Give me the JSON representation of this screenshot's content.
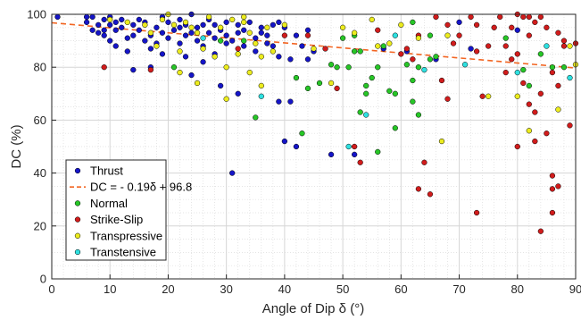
{
  "chart_data": {
    "type": "scatter",
    "xlabel": "Angle of Dip δ (°)",
    "ylabel": "DC (%)",
    "xlim": [
      0,
      90
    ],
    "ylim": [
      0,
      100
    ],
    "xticks": [
      0,
      10,
      20,
      30,
      40,
      50,
      60,
      70,
      80,
      90
    ],
    "yticks": [
      0,
      20,
      40,
      60,
      80,
      100
    ],
    "grid": true,
    "minor_grid": true,
    "legend_position": "bottom-left",
    "fit_line": {
      "label": "DC = - 0.19δ + 96.8",
      "slope": -0.19,
      "intercept": 96.8,
      "color": "#f26522",
      "style": "dashed"
    },
    "series": [
      {
        "name": "Thrust",
        "color": "#1515c8",
        "points": [
          [
            1,
            99
          ],
          [
            6,
            99
          ],
          [
            6,
            97
          ],
          [
            7,
            94
          ],
          [
            7,
            99
          ],
          [
            8,
            96
          ],
          [
            8,
            93
          ],
          [
            9,
            94
          ],
          [
            9,
            98
          ],
          [
            9,
            92
          ],
          [
            10,
            96
          ],
          [
            10,
            90
          ],
          [
            10,
            99
          ],
          [
            11,
            94
          ],
          [
            11,
            97
          ],
          [
            11,
            88
          ],
          [
            12,
            95
          ],
          [
            12,
            98
          ],
          [
            13,
            91
          ],
          [
            13,
            86
          ],
          [
            14,
            96
          ],
          [
            14,
            92
          ],
          [
            14,
            79
          ],
          [
            15,
            98
          ],
          [
            15,
            94
          ],
          [
            16,
            90
          ],
          [
            16,
            97
          ],
          [
            17,
            92
          ],
          [
            17,
            87
          ],
          [
            17,
            80
          ],
          [
            18,
            95
          ],
          [
            18,
            89
          ],
          [
            19,
            99
          ],
          [
            19,
            93
          ],
          [
            19,
            85
          ],
          [
            20,
            97
          ],
          [
            20,
            91
          ],
          [
            21,
            94
          ],
          [
            22,
            95
          ],
          [
            22,
            89
          ],
          [
            22,
            98
          ],
          [
            23,
            96
          ],
          [
            23,
            92
          ],
          [
            23,
            84
          ],
          [
            24,
            100
          ],
          [
            24,
            93
          ],
          [
            24,
            77
          ],
          [
            25,
            95
          ],
          [
            25,
            90
          ],
          [
            26,
            96
          ],
          [
            26,
            88
          ],
          [
            26,
            82
          ],
          [
            27,
            93
          ],
          [
            27,
            98
          ],
          [
            28,
            91
          ],
          [
            28,
            85
          ],
          [
            28,
            96
          ],
          [
            29,
            94
          ],
          [
            29,
            73
          ],
          [
            30,
            97
          ],
          [
            30,
            89
          ],
          [
            30,
            92
          ],
          [
            31,
            90
          ],
          [
            31,
            40
          ],
          [
            32,
            96
          ],
          [
            32,
            93
          ],
          [
            32,
            70
          ],
          [
            33,
            94
          ],
          [
            33,
            88
          ],
          [
            34,
            97
          ],
          [
            35,
            91
          ],
          [
            35,
            86
          ],
          [
            36,
            95
          ],
          [
            36,
            93
          ],
          [
            37,
            92
          ],
          [
            37,
            89
          ],
          [
            38,
            96
          ],
          [
            38,
            88
          ],
          [
            39,
            97
          ],
          [
            39,
            84
          ],
          [
            39,
            67
          ],
          [
            40,
            95
          ],
          [
            40,
            52
          ],
          [
            41,
            83
          ],
          [
            41,
            67
          ],
          [
            42,
            92
          ],
          [
            42,
            50
          ],
          [
            43,
            88
          ],
          [
            44,
            94
          ],
          [
            44,
            83
          ],
          [
            45,
            86
          ],
          [
            48,
            47
          ],
          [
            52,
            47
          ],
          [
            57,
            87
          ],
          [
            61,
            86
          ],
          [
            66,
            83
          ],
          [
            70,
            97
          ],
          [
            72,
            87
          ],
          [
            80,
            94
          ]
        ]
      },
      {
        "name": "Normal",
        "color": "#27c627",
        "points": [
          [
            21,
            80
          ],
          [
            29,
            90
          ],
          [
            33,
            90
          ],
          [
            35,
            61
          ],
          [
            42,
            76
          ],
          [
            43,
            55
          ],
          [
            44,
            72
          ],
          [
            46,
            74
          ],
          [
            48,
            81
          ],
          [
            49,
            80
          ],
          [
            50,
            91
          ],
          [
            51,
            80
          ],
          [
            52,
            86
          ],
          [
            52,
            92
          ],
          [
            53,
            86
          ],
          [
            53,
            63
          ],
          [
            54,
            73
          ],
          [
            54,
            70
          ],
          [
            55,
            76
          ],
          [
            56,
            80
          ],
          [
            56,
            48
          ],
          [
            57,
            88
          ],
          [
            58,
            71
          ],
          [
            59,
            70
          ],
          [
            59,
            57
          ],
          [
            61,
            81
          ],
          [
            62,
            97
          ],
          [
            62,
            75
          ],
          [
            62,
            67
          ],
          [
            63,
            62
          ],
          [
            63,
            80
          ],
          [
            65,
            92
          ],
          [
            65,
            83
          ],
          [
            66,
            84
          ],
          [
            78,
            91
          ],
          [
            81,
            79
          ],
          [
            82,
            73
          ],
          [
            84,
            85
          ],
          [
            86,
            80
          ],
          [
            88,
            80
          ]
        ]
      },
      {
        "name": "Strike-Slip",
        "color": "#d11c1c",
        "points": [
          [
            9,
            80
          ],
          [
            17,
            79
          ],
          [
            32,
            87
          ],
          [
            40,
            92
          ],
          [
            44,
            92
          ],
          [
            47,
            87
          ],
          [
            49,
            72
          ],
          [
            52,
            50
          ],
          [
            53,
            44
          ],
          [
            56,
            94
          ],
          [
            60,
            85
          ],
          [
            61,
            87
          ],
          [
            62,
            83
          ],
          [
            63,
            92
          ],
          [
            63,
            34
          ],
          [
            64,
            44
          ],
          [
            65,
            32
          ],
          [
            66,
            99
          ],
          [
            67,
            75
          ],
          [
            68,
            68
          ],
          [
            68,
            96
          ],
          [
            69,
            89
          ],
          [
            70,
            92
          ],
          [
            72,
            99
          ],
          [
            73,
            96
          ],
          [
            73,
            86
          ],
          [
            73,
            25
          ],
          [
            74,
            69
          ],
          [
            75,
            88
          ],
          [
            76,
            95
          ],
          [
            77,
            99
          ],
          [
            78,
            78
          ],
          [
            78,
            88
          ],
          [
            79,
            83
          ],
          [
            79,
            95
          ],
          [
            80,
            100
          ],
          [
            80,
            85
          ],
          [
            80,
            50
          ],
          [
            81,
            99
          ],
          [
            81,
            74
          ],
          [
            82,
            99
          ],
          [
            82,
            66
          ],
          [
            82,
            92
          ],
          [
            83,
            97
          ],
          [
            83,
            63
          ],
          [
            83,
            52
          ],
          [
            84,
            99
          ],
          [
            84,
            70
          ],
          [
            84,
            18
          ],
          [
            85,
            95
          ],
          [
            85,
            55
          ],
          [
            86,
            39
          ],
          [
            86,
            34
          ],
          [
            86,
            25
          ],
          [
            86,
            78
          ],
          [
            87,
            93
          ],
          [
            87,
            73
          ],
          [
            87,
            35
          ],
          [
            88,
            90
          ],
          [
            88,
            88
          ],
          [
            89,
            58
          ],
          [
            90,
            89
          ]
        ]
      },
      {
        "name": "Transpressive",
        "color": "#ecec1e",
        "points": [
          [
            10,
            98
          ],
          [
            13,
            97
          ],
          [
            16,
            96
          ],
          [
            17,
            93
          ],
          [
            18,
            88
          ],
          [
            19,
            98
          ],
          [
            20,
            100
          ],
          [
            21,
            96
          ],
          [
            22,
            86
          ],
          [
            22,
            78
          ],
          [
            23,
            97
          ],
          [
            24,
            95
          ],
          [
            25,
            74
          ],
          [
            25,
            93
          ],
          [
            26,
            87
          ],
          [
            27,
            99
          ],
          [
            28,
            84
          ],
          [
            29,
            95
          ],
          [
            30,
            80
          ],
          [
            30,
            68
          ],
          [
            31,
            98
          ],
          [
            32,
            85
          ],
          [
            33,
            97
          ],
          [
            33,
            99
          ],
          [
            34,
            93
          ],
          [
            34,
            78
          ],
          [
            35,
            89
          ],
          [
            36,
            73
          ],
          [
            36,
            84
          ],
          [
            37,
            95
          ],
          [
            38,
            86
          ],
          [
            40,
            96
          ],
          [
            45,
            87
          ],
          [
            48,
            74
          ],
          [
            50,
            95
          ],
          [
            52,
            93
          ],
          [
            55,
            98
          ],
          [
            56,
            88
          ],
          [
            58,
            89
          ],
          [
            60,
            96
          ],
          [
            63,
            91
          ],
          [
            67,
            52
          ],
          [
            68,
            92
          ],
          [
            75,
            69
          ],
          [
            80,
            69
          ],
          [
            82,
            56
          ],
          [
            87,
            64
          ],
          [
            89,
            88
          ],
          [
            90,
            81
          ]
        ]
      },
      {
        "name": "Transtensive",
        "color": "#2ee0e0",
        "points": [
          [
            26,
            91
          ],
          [
            36,
            69
          ],
          [
            51,
            50
          ],
          [
            54,
            62
          ],
          [
            59,
            92
          ],
          [
            64,
            79
          ],
          [
            71,
            81
          ],
          [
            80,
            78
          ],
          [
            85,
            88
          ],
          [
            89,
            76
          ]
        ]
      }
    ]
  }
}
